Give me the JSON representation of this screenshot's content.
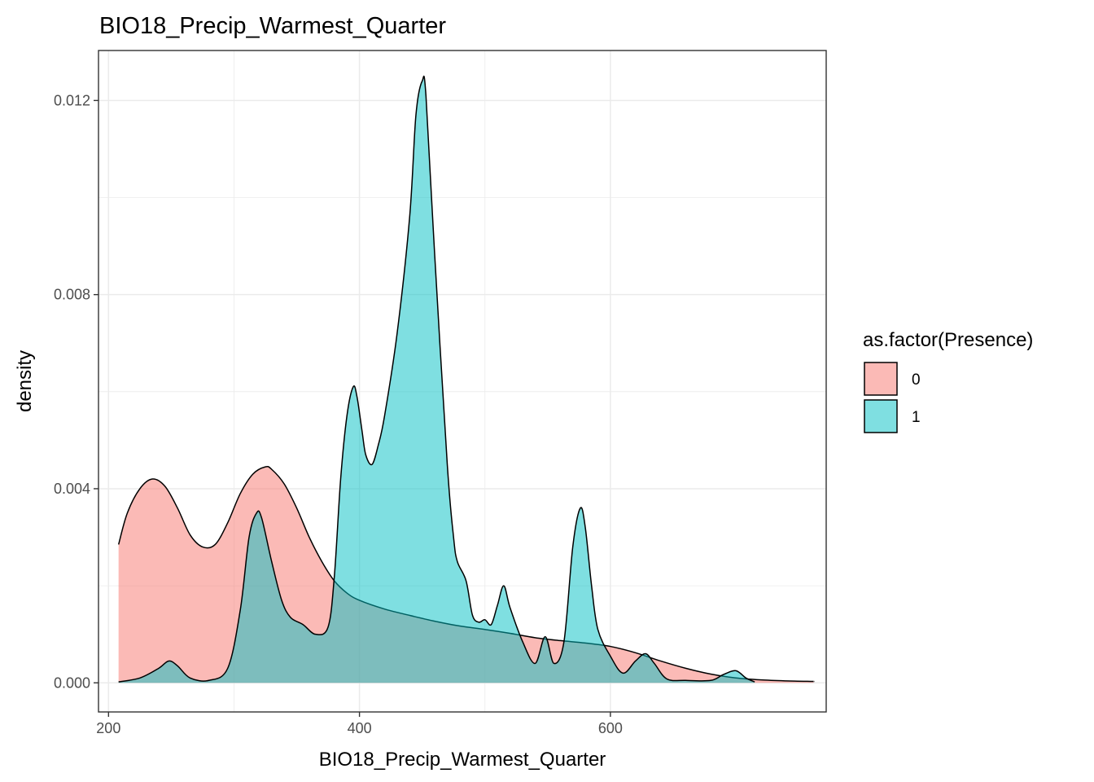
{
  "chart_data": {
    "type": "area",
    "title": "BIO18_Precip_Warmest_Quarter",
    "xlabel": "BIO18_Precip_Warmest_Quarter",
    "ylabel": "density",
    "xlim": [
      192,
      772
    ],
    "ylim": [
      -0.0006,
      0.01303
    ],
    "x_ticks": [
      200,
      400,
      600
    ],
    "x_tick_labels": [
      "200",
      "400",
      "600"
    ],
    "y_ticks": [
      0.0,
      0.004,
      0.008,
      0.012
    ],
    "y_tick_labels": [
      "0.000",
      "0.004",
      "0.008",
      "0.012"
    ],
    "grid": true,
    "legend": {
      "title": "as.factor(Presence)",
      "position": "right",
      "entries": [
        "0",
        "1"
      ]
    },
    "colors": {
      "0": "#F8766D",
      "1": "#00BFC4"
    },
    "fill_alpha": 0.5,
    "series": [
      {
        "name": "0",
        "x": [
          208,
          215,
          225,
          235,
          245,
          255,
          265,
          275,
          285,
          295,
          305,
          315,
          325,
          330,
          340,
          350,
          360,
          370,
          380,
          390,
          400,
          420,
          440,
          460,
          480,
          500,
          520,
          540,
          560,
          580,
          600,
          620,
          640,
          660,
          680,
          700,
          720,
          740,
          760,
          762
        ],
        "y": [
          0.00285,
          0.0035,
          0.004,
          0.0042,
          0.00405,
          0.0036,
          0.00305,
          0.0028,
          0.00285,
          0.0033,
          0.0039,
          0.0043,
          0.00445,
          0.0044,
          0.0041,
          0.0036,
          0.003,
          0.0025,
          0.0021,
          0.00185,
          0.0017,
          0.00152,
          0.00139,
          0.00127,
          0.00117,
          0.0011,
          0.00102,
          0.00093,
          0.00087,
          0.00082,
          0.00075,
          0.00062,
          0.00045,
          0.0003,
          0.00018,
          0.0001,
          6e-05,
          4e-05,
          3e-05,
          3e-05
        ]
      },
      {
        "name": "1",
        "x": [
          208,
          225,
          240,
          248,
          255,
          265,
          280,
          295,
          305,
          312,
          318,
          322,
          330,
          338,
          345,
          355,
          365,
          375,
          380,
          385,
          390,
          395,
          398,
          402,
          405,
          410,
          415,
          420,
          430,
          440,
          445,
          450,
          453,
          460,
          470,
          475,
          478,
          485,
          490,
          495,
          500,
          505,
          510,
          515,
          520,
          530,
          540,
          548,
          555,
          563,
          570,
          576,
          580,
          585,
          590,
          600,
          610,
          620,
          628,
          635,
          645,
          660,
          680,
          690,
          700,
          708,
          715
        ],
        "y": [
          2e-05,
          0.0001,
          0.0003,
          0.00045,
          0.00035,
          0.0001,
          5e-05,
          0.0003,
          0.0015,
          0.003,
          0.0035,
          0.0034,
          0.0025,
          0.0017,
          0.00135,
          0.0012,
          0.001,
          0.00115,
          0.0022,
          0.0042,
          0.0055,
          0.0061,
          0.0059,
          0.0052,
          0.0047,
          0.0045,
          0.0049,
          0.0055,
          0.0072,
          0.0096,
          0.0117,
          0.0124,
          0.0121,
          0.0088,
          0.0045,
          0.003,
          0.0025,
          0.0021,
          0.0014,
          0.00125,
          0.0013,
          0.0012,
          0.0016,
          0.002,
          0.00155,
          0.00085,
          0.0004,
          0.00095,
          0.0004,
          0.00085,
          0.0028,
          0.0036,
          0.0032,
          0.002,
          0.0011,
          0.00055,
          0.0002,
          0.00045,
          0.0006,
          0.0004,
          8e-05,
          5e-05,
          5e-05,
          0.00017,
          0.00025,
          0.0001,
          2e-05
        ]
      }
    ]
  }
}
